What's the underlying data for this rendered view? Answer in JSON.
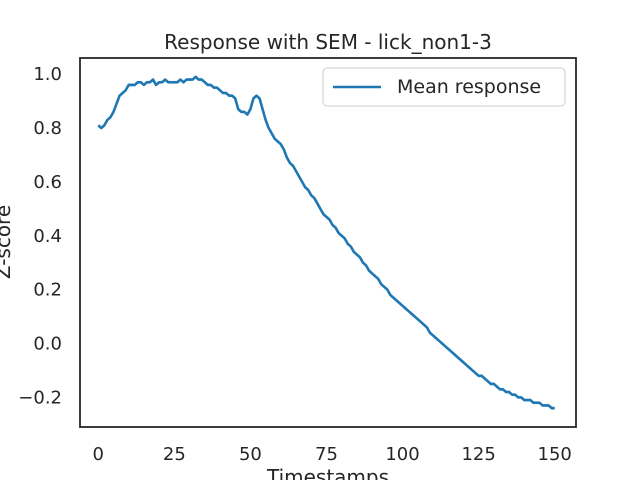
{
  "chart_data": {
    "type": "line",
    "title": "Response with SEM - lick_non1-3",
    "xlabel": "Timestamps",
    "ylabel": "Z-score",
    "xlim": [
      -6,
      157
    ],
    "ylim": [
      -0.31,
      1.06
    ],
    "xticks": [
      0,
      25,
      50,
      75,
      100,
      125,
      150
    ],
    "xtick_labels": [
      "0",
      "25",
      "50",
      "75",
      "100",
      "125",
      "150"
    ],
    "yticks": [
      -0.2,
      0.0,
      0.2,
      0.4,
      0.6,
      0.8,
      1.0
    ],
    "ytick_labels": [
      "−0.2",
      "0.0",
      "0.2",
      "0.4",
      "0.6",
      "0.8",
      "1.0"
    ],
    "grid": false,
    "legend_position": "top-right",
    "series": [
      {
        "name": "Mean response",
        "color": "#1f77b4",
        "band_color": "#a9cbe6",
        "x": [
          0,
          1,
          2,
          3,
          4,
          5,
          6,
          7,
          8,
          9,
          10,
          11,
          12,
          13,
          14,
          15,
          16,
          17,
          18,
          19,
          20,
          21,
          22,
          23,
          24,
          25,
          26,
          27,
          28,
          29,
          30,
          31,
          32,
          33,
          34,
          35,
          36,
          37,
          38,
          39,
          40,
          41,
          42,
          43,
          44,
          45,
          46,
          47,
          48,
          49,
          50,
          51,
          52,
          53,
          54,
          55,
          56,
          57,
          58,
          59,
          60,
          61,
          62,
          63,
          64,
          65,
          66,
          67,
          68,
          69,
          70,
          71,
          72,
          73,
          74,
          75,
          76,
          77,
          78,
          79,
          80,
          81,
          82,
          83,
          84,
          85,
          86,
          87,
          88,
          89,
          90,
          91,
          92,
          93,
          94,
          95,
          96,
          97,
          98,
          99,
          100,
          101,
          102,
          103,
          104,
          105,
          106,
          107,
          108,
          109,
          110,
          111,
          112,
          113,
          114,
          115,
          116,
          117,
          118,
          119,
          120,
          121,
          122,
          123,
          124,
          125,
          126,
          127,
          128,
          129,
          130,
          131,
          132,
          133,
          134,
          135,
          136,
          137,
          138,
          139,
          140,
          141,
          142,
          143,
          144,
          145,
          146,
          147,
          148,
          149,
          150
        ],
        "y": [
          0.81,
          0.8,
          0.81,
          0.83,
          0.84,
          0.86,
          0.89,
          0.92,
          0.93,
          0.94,
          0.96,
          0.96,
          0.96,
          0.97,
          0.97,
          0.96,
          0.97,
          0.97,
          0.98,
          0.96,
          0.97,
          0.97,
          0.98,
          0.97,
          0.97,
          0.97,
          0.97,
          0.98,
          0.97,
          0.98,
          0.98,
          0.98,
          0.99,
          0.98,
          0.98,
          0.97,
          0.96,
          0.96,
          0.95,
          0.95,
          0.94,
          0.93,
          0.93,
          0.92,
          0.92,
          0.91,
          0.87,
          0.86,
          0.86,
          0.85,
          0.87,
          0.91,
          0.92,
          0.91,
          0.87,
          0.83,
          0.8,
          0.78,
          0.76,
          0.75,
          0.74,
          0.72,
          0.69,
          0.67,
          0.66,
          0.64,
          0.62,
          0.6,
          0.58,
          0.57,
          0.55,
          0.54,
          0.52,
          0.5,
          0.48,
          0.47,
          0.46,
          0.44,
          0.43,
          0.41,
          0.4,
          0.39,
          0.37,
          0.36,
          0.34,
          0.33,
          0.32,
          0.3,
          0.29,
          0.27,
          0.26,
          0.25,
          0.24,
          0.22,
          0.21,
          0.2,
          0.18,
          0.17,
          0.16,
          0.15,
          0.14,
          0.13,
          0.12,
          0.11,
          0.1,
          0.09,
          0.08,
          0.07,
          0.06,
          0.04,
          0.03,
          0.02,
          0.01,
          0.0,
          -0.01,
          -0.02,
          -0.03,
          -0.04,
          -0.05,
          -0.06,
          -0.07,
          -0.08,
          -0.09,
          -0.1,
          -0.11,
          -0.12,
          -0.12,
          -0.13,
          -0.14,
          -0.15,
          -0.15,
          -0.16,
          -0.17,
          -0.17,
          -0.18,
          -0.18,
          -0.19,
          -0.19,
          -0.2,
          -0.2,
          -0.21,
          -0.21,
          -0.21,
          -0.22,
          -0.22,
          -0.22,
          -0.23,
          -0.23,
          -0.23,
          -0.24,
          -0.24
        ]
      }
    ]
  }
}
